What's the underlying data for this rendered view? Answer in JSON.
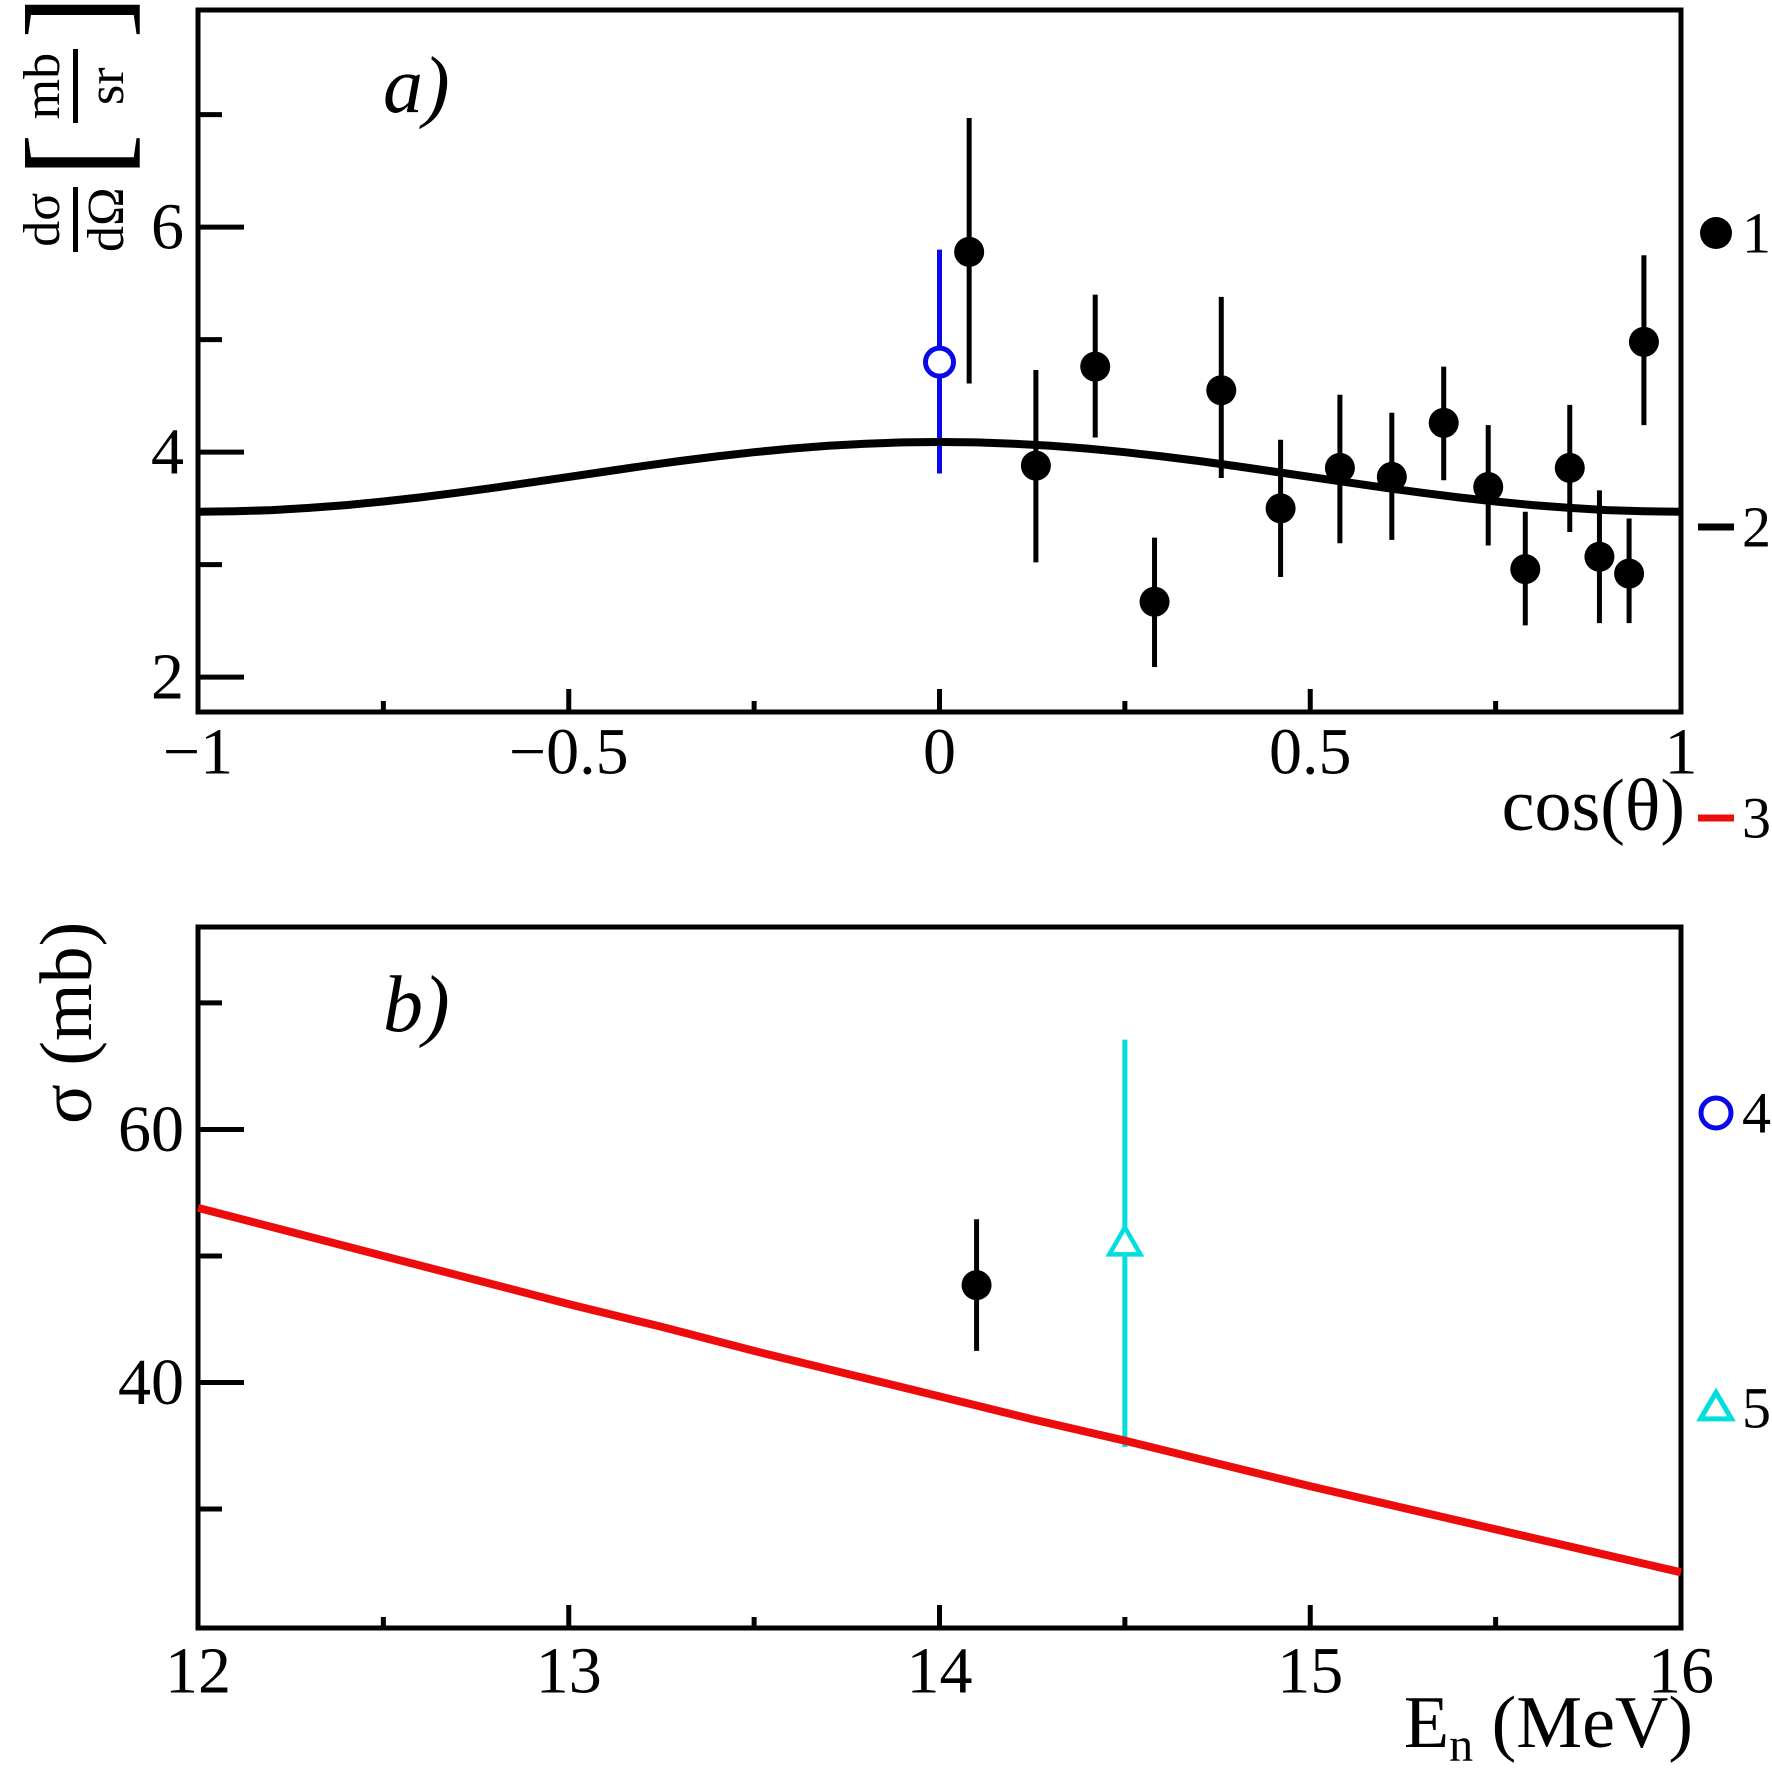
{
  "legend": [
    {
      "label": "1",
      "marker": "filled-circle",
      "color": "#000000"
    },
    {
      "label": "2",
      "marker": "hline",
      "color": "#000000"
    },
    {
      "label": "3",
      "marker": "hline",
      "color": "#ec0c0c"
    },
    {
      "label": "4",
      "marker": "open-circle",
      "color": "#0808e8"
    },
    {
      "label": "5",
      "marker": "open-triangle",
      "color": "#00dede"
    }
  ],
  "chart_data": [
    {
      "id": "a",
      "type": "scatter",
      "title": "a)",
      "xlabel": "cos(θ)",
      "ylabel": "dσ/dΩ [mb/sr]",
      "ylabel_parts": {
        "frac1_num": "dσ",
        "frac1_den": "dΩ",
        "bracket_left": "[",
        "frac2_num": "mb",
        "frac2_den": "sr",
        "bracket_right": "]"
      },
      "xlim": [
        -1,
        1
      ],
      "ylim": [
        1.69,
        7.93
      ],
      "grid": false,
      "legend_position": "right-margin",
      "xticks": {
        "major": [
          -1,
          -0.5,
          0,
          0.5,
          1
        ],
        "major_labels": [
          "−1",
          "−0.5",
          "0",
          "0.5",
          "1"
        ],
        "minor": [
          -0.75,
          -0.25,
          0.25,
          0.75
        ]
      },
      "yticks": {
        "major": [
          2,
          4,
          6
        ],
        "major_labels": [
          "2",
          "4",
          "6"
        ],
        "minor": [
          3,
          5,
          7
        ]
      },
      "series": [
        {
          "name": "4",
          "kind": "points",
          "marker": "open-circle",
          "color": "#0808e8",
          "points": [
            [
              0.0,
              4.8,
              1.0,
              0.99
            ]
          ]
        },
        {
          "name": "2",
          "kind": "curve",
          "color": "#000000",
          "x": [
            -1,
            -0.95,
            -0.9,
            -0.85,
            -0.8,
            -0.75,
            -0.7,
            -0.65,
            -0.6,
            -0.55,
            -0.5,
            -0.45,
            -0.4,
            -0.35,
            -0.3,
            -0.25,
            -0.2,
            -0.15,
            -0.1,
            -0.05,
            0,
            0.05,
            0.1,
            0.15,
            0.2,
            0.25,
            0.3,
            0.35,
            0.4,
            0.45,
            0.5,
            0.55,
            0.6,
            0.65,
            0.7,
            0.75,
            0.8,
            0.85,
            0.9,
            0.95,
            1
          ],
          "y": [
            3.47,
            3.474,
            3.485,
            3.504,
            3.529,
            3.561,
            3.598,
            3.639,
            3.684,
            3.732,
            3.78,
            3.828,
            3.876,
            3.921,
            3.962,
            3.999,
            4.031,
            4.056,
            4.075,
            4.086,
            4.09,
            4.086,
            4.075,
            4.056,
            4.031,
            3.999,
            3.962,
            3.921,
            3.876,
            3.828,
            3.78,
            3.732,
            3.684,
            3.639,
            3.598,
            3.561,
            3.529,
            3.504,
            3.485,
            3.474,
            3.47
          ]
        },
        {
          "name": "1",
          "kind": "points",
          "marker": "filled-circle",
          "color": "#000000",
          "points": [
            [
              0.04,
              5.78,
              1.19,
              1.17
            ],
            [
              0.13,
              3.88,
              0.85,
              0.86
            ],
            [
              0.21,
              4.76,
              0.64,
              0.63
            ],
            [
              0.29,
              2.67,
              0.57,
              0.58
            ],
            [
              0.38,
              4.55,
              0.83,
              0.78
            ],
            [
              0.46,
              3.5,
              0.61,
              0.61
            ],
            [
              0.54,
              3.86,
              0.65,
              0.67
            ],
            [
              0.61,
              3.78,
              0.57,
              0.56
            ],
            [
              0.68,
              4.26,
              0.5,
              0.51
            ],
            [
              0.74,
              3.69,
              0.55,
              0.52
            ],
            [
              0.79,
              2.96,
              0.51,
              0.5
            ],
            [
              0.85,
              3.86,
              0.56,
              0.57
            ],
            [
              0.89,
              3.07,
              0.59,
              0.59
            ],
            [
              0.93,
              2.92,
              0.49,
              0.44
            ],
            [
              0.95,
              4.98,
              0.77,
              0.74
            ]
          ]
        }
      ]
    },
    {
      "id": "b",
      "type": "scatter",
      "title": "b)",
      "xlabel": "En (MeV)",
      "xlabel_parts": {
        "main": "E",
        "sub": "n",
        "rest": " (MeV)"
      },
      "ylabel": "σ (mb)",
      "xlim": [
        12,
        16
      ],
      "ylim": [
        20.6,
        76.0
      ],
      "grid": false,
      "legend_position": "right-margin",
      "xticks": {
        "major": [
          12,
          13,
          14,
          15,
          16
        ],
        "major_labels": [
          "12",
          "13",
          "14",
          "15",
          "16"
        ],
        "minor": [
          12.5,
          13.5,
          14.5,
          15.5
        ]
      },
      "yticks": {
        "major": [
          40,
          60
        ],
        "major_labels": [
          "40",
          "60"
        ],
        "minor": [
          30,
          50,
          70
        ]
      },
      "series": [
        {
          "name": "5",
          "kind": "points",
          "marker": "open-triangle",
          "color": "#00dede",
          "points": [
            [
              14.5,
              51.0,
              16.1,
              16.1
            ]
          ]
        },
        {
          "name": "3",
          "kind": "curve",
          "color": "#ec0c0c",
          "x": [
            12,
            12.25,
            12.5,
            12.75,
            13,
            13.25,
            13.5,
            13.75,
            14,
            14.25,
            14.5,
            14.75,
            15,
            15.25,
            15.5,
            15.75,
            16
          ],
          "y": [
            53.8,
            51.9,
            50.0,
            48.1,
            46.2,
            44.4,
            42.5,
            40.7,
            38.9,
            37.1,
            35.4,
            33.6,
            31.8,
            30.1,
            28.4,
            26.7,
            25.0
          ]
        },
        {
          "name": "1",
          "kind": "points",
          "marker": "filled-circle",
          "color": "#000000",
          "points": [
            [
              14.1,
              47.7,
              5.2,
              5.2
            ]
          ]
        }
      ]
    }
  ]
}
